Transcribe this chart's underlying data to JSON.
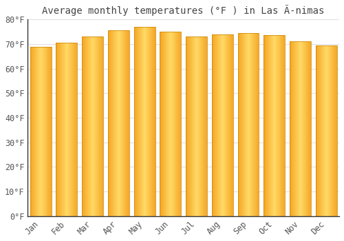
{
  "title": "Average monthly temperatures (°F ) in Las Ã­nimas",
  "months": [
    "Jan",
    "Feb",
    "Mar",
    "Apr",
    "May",
    "Jun",
    "Jul",
    "Aug",
    "Sep",
    "Oct",
    "Nov",
    "Dec"
  ],
  "values": [
    69,
    70.5,
    73,
    75.5,
    77,
    75,
    73,
    74,
    74.5,
    73.5,
    71,
    69.5
  ],
  "bar_color_center": "#FFD966",
  "bar_color_edge": "#F5A623",
  "bar_edge_color": "#C88000",
  "ylim": [
    0,
    80
  ],
  "yticks": [
    0,
    10,
    20,
    30,
    40,
    50,
    60,
    70,
    80
  ],
  "ytick_labels": [
    "0°F",
    "10°F",
    "20°F",
    "30°F",
    "40°F",
    "50°F",
    "60°F",
    "70°F",
    "80°F"
  ],
  "background_color": "#ffffff",
  "grid_color": "#e0e0e0",
  "title_fontsize": 10,
  "tick_fontsize": 8.5
}
